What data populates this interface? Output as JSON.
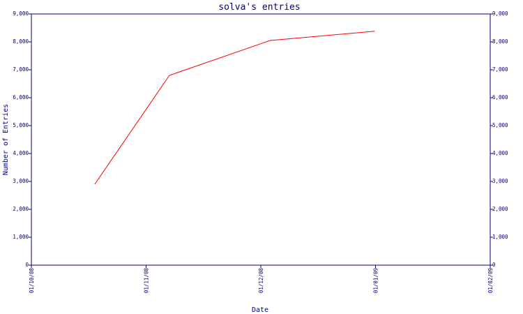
{
  "chart_data": {
    "type": "line",
    "title": "solva's entries",
    "xlabel": "Date",
    "ylabel": "Number of Entries",
    "x_ticks": [
      "01/10/08",
      "01/11/08",
      "01/12/08",
      "01/01/09",
      "01/02/09"
    ],
    "y_ticks": [
      "0",
      "1,000",
      "2,000",
      "3,000",
      "4,000",
      "5,000",
      "6,000",
      "7,000",
      "8,000",
      "9,000"
    ],
    "ylim": [
      0,
      9000
    ],
    "xlim": [
      "2008-10-01",
      "2009-02-01"
    ],
    "grid": false,
    "series": [
      {
        "color": "#ff0000",
        "points": [
          {
            "x": "2008-10-18",
            "y": 2900
          },
          {
            "x": "2008-11-07",
            "y": 6800
          },
          {
            "x": "2008-12-04",
            "y": 8050
          },
          {
            "x": "2009-01-01",
            "y": 8380
          }
        ]
      }
    ]
  }
}
